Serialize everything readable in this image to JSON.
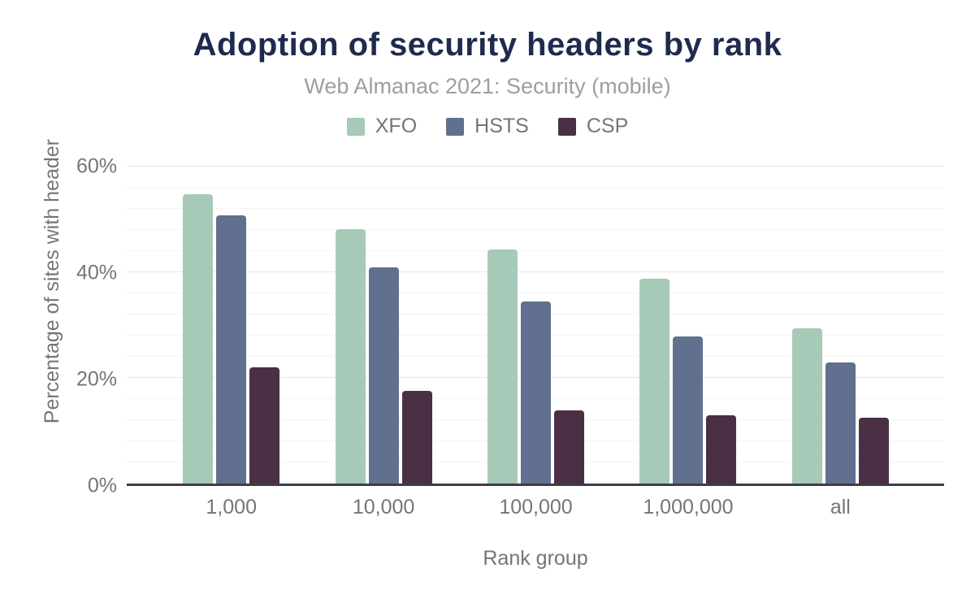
{
  "chart_data": {
    "type": "bar",
    "title": "Adoption of security headers by rank",
    "subtitle": "Web Almanac 2021: Security (mobile)",
    "xlabel": "Rank group",
    "ylabel": "Percentage of sites with header",
    "categories": [
      "1,000",
      "10,000",
      "100,000",
      "1,000,000",
      "all"
    ],
    "series": [
      {
        "name": "XFO",
        "color": "#a6c9b8",
        "values": [
          54.8,
          48.2,
          44.3,
          38.8,
          29.4
        ]
      },
      {
        "name": "HSTS",
        "color": "#61708e",
        "values": [
          50.8,
          41.0,
          34.4,
          27.8,
          22.9
        ]
      },
      {
        "name": "CSP",
        "color": "#4a3045",
        "values": [
          22.0,
          17.6,
          13.9,
          13.0,
          12.4
        ]
      }
    ],
    "ylim": [
      0,
      62
    ],
    "yticks": [
      0,
      20,
      40,
      60
    ],
    "ytick_suffix": "%",
    "grid": {
      "minor_interval": 4,
      "major_interval": 20,
      "visible": true
    },
    "legend_position": "top"
  },
  "colors": {
    "background": "#ffffff",
    "title_text": "#1e2b4e",
    "subtitle_text": "#9e9e9e",
    "axis_text": "#757575",
    "baseline": "#3a3f44",
    "gridline_minor": "#f4f4f4",
    "gridline_major": "#e6e6e6"
  }
}
